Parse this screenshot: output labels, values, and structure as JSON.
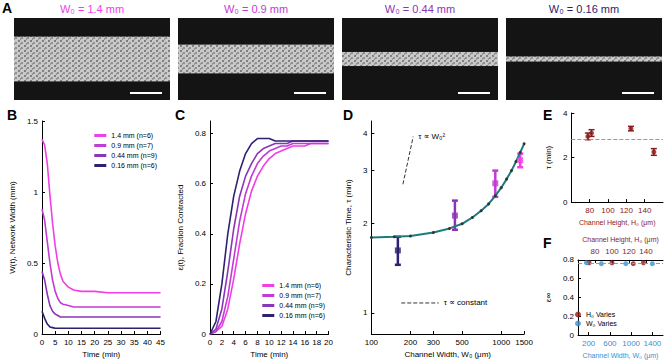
{
  "image_panel": {
    "title": "A",
    "items": [
      {
        "label": "W₀ = 1.4 mm",
        "color": "#f03ee8",
        "width": 1.4
      },
      {
        "label": "W₀ = 0.9 mm",
        "color": "#c23bd4",
        "width": 0.9
      },
      {
        "label": "W₀ = 0.44 mm",
        "color": "#8a35b8",
        "width": 0.44
      },
      {
        "label": "W₀ = 0.16 mm",
        "color": "#2c2270",
        "width": 0.16
      }
    ]
  },
  "chart_data": [
    {
      "type": "line",
      "title": "B",
      "xlabel": "Time (min)",
      "ylabel": "W(t), Network Width (mm)",
      "x": [
        0,
        1,
        2,
        3,
        4,
        5,
        6,
        7,
        8,
        10,
        12,
        15,
        20,
        25,
        30,
        35,
        40,
        45
      ],
      "xlim": [
        0,
        45
      ],
      "xticks": [
        0,
        5,
        10,
        15,
        20,
        25,
        30,
        35,
        40,
        45
      ],
      "ylim": [
        0,
        1.5
      ],
      "yticks": [
        0,
        0.5,
        1,
        1.5
      ],
      "legend": "upper right",
      "series": [
        {
          "name": "1.4 mm (n=6)",
          "color": "#f03ee8",
          "values": [
            1.37,
            1.33,
            1.2,
            0.98,
            0.78,
            0.62,
            0.5,
            0.42,
            0.37,
            0.33,
            0.31,
            0.3,
            0.3,
            0.29,
            0.29,
            0.29,
            0.29,
            0.29
          ]
        },
        {
          "name": "0.9 mm (n=7)",
          "color": "#c23bd4",
          "values": [
            0.88,
            0.8,
            0.65,
            0.5,
            0.38,
            0.3,
            0.25,
            0.22,
            0.21,
            0.2,
            0.19,
            0.19,
            0.19,
            0.19,
            0.19,
            0.19,
            0.19,
            0.19
          ]
        },
        {
          "name": "0.44 mm (n=9)",
          "color": "#8a35b8",
          "values": [
            0.44,
            0.38,
            0.28,
            0.2,
            0.16,
            0.14,
            0.13,
            0.12,
            0.12,
            0.12,
            0.12,
            0.12,
            0.12,
            0.12,
            0.12,
            0.12,
            0.12,
            0.12
          ]
        },
        {
          "name": "0.16 mm (n=6)",
          "color": "#2c2270",
          "values": [
            0.16,
            0.11,
            0.07,
            0.05,
            0.045,
            0.04,
            0.04,
            0.04,
            0.04,
            0.04,
            0.04,
            0.04,
            0.04,
            0.04,
            0.04,
            0.04,
            0.04,
            0.04
          ]
        }
      ]
    },
    {
      "type": "line",
      "title": "C",
      "xlabel": "Time (min)",
      "ylabel": "ε(t), Fraction Contracted",
      "x": [
        0,
        1,
        2,
        3,
        4,
        5,
        6,
        7,
        8,
        9,
        10,
        11,
        12,
        13,
        14,
        15,
        16,
        17,
        18,
        19,
        20
      ],
      "xlim": [
        0,
        20
      ],
      "xticks": [
        0,
        2,
        4,
        6,
        8,
        10,
        12,
        14,
        16,
        18,
        20
      ],
      "ylim": [
        0,
        0.85
      ],
      "yticks": [
        0,
        0.2,
        0.4,
        0.6,
        0.8
      ],
      "legend": "lower right",
      "series": [
        {
          "name": "1.4 mm (n=6)",
          "color": "#f03ee8",
          "values": [
            0,
            0.01,
            0.03,
            0.1,
            0.22,
            0.36,
            0.48,
            0.57,
            0.63,
            0.67,
            0.7,
            0.72,
            0.73,
            0.74,
            0.75,
            0.75,
            0.75,
            0.76,
            0.76,
            0.76,
            0.76
          ]
        },
        {
          "name": "0.9 mm (n=7)",
          "color": "#c23bd4",
          "values": [
            0,
            0.01,
            0.05,
            0.15,
            0.3,
            0.45,
            0.56,
            0.63,
            0.68,
            0.71,
            0.73,
            0.74,
            0.75,
            0.75,
            0.76,
            0.76,
            0.76,
            0.76,
            0.76,
            0.76,
            0.76
          ]
        },
        {
          "name": "0.44 mm (n=9)",
          "color": "#8a35b8",
          "values": [
            0,
            0.02,
            0.1,
            0.25,
            0.42,
            0.55,
            0.63,
            0.68,
            0.72,
            0.74,
            0.75,
            0.76,
            0.76,
            0.76,
            0.77,
            0.77,
            0.77,
            0.77,
            0.77,
            0.77,
            0.77
          ]
        },
        {
          "name": "0.16 mm (n=6)",
          "color": "#2c2270",
          "values": [
            0,
            0.05,
            0.2,
            0.4,
            0.55,
            0.65,
            0.72,
            0.76,
            0.78,
            0.78,
            0.78,
            0.77,
            0.77,
            0.77,
            0.77,
            0.77,
            0.77,
            0.77,
            0.77,
            0.77,
            0.77
          ]
        }
      ]
    },
    {
      "type": "scatter",
      "title": "D",
      "log": true,
      "xlabel": "Channel Width, W₀ (μm)",
      "ylabel": "Characteristic Time, τ (min)",
      "xlim": [
        100,
        1500
      ],
      "xticks": [
        100,
        200,
        300,
        500,
        1000,
        1500
      ],
      "ylim": [
        0.85,
        4.4
      ],
      "yticks": [
        1,
        2,
        3,
        4
      ],
      "series": [
        {
          "type": "scatter",
          "marker": "square",
          "x": [
            160,
            440,
            900,
            1400
          ],
          "values": [
            1.62,
            2.12,
            2.72,
            3.25
          ],
          "error_low": [
            1.45,
            1.9,
            2.45,
            3.08
          ],
          "error_high": [
            1.8,
            2.38,
            3.0,
            3.42
          ],
          "colors": [
            "#2c2270",
            "#8a35b8",
            "#c23bd4",
            "#f03ee8"
          ]
        },
        {
          "type": "line",
          "marker": "dot",
          "color": "#1f7a80",
          "x": [
            100,
            150,
            200,
            300,
            400,
            500,
            600,
            700,
            800,
            900,
            1000,
            1100,
            1200,
            1300,
            1400,
            1500
          ],
          "values": [
            1.79,
            1.8,
            1.81,
            1.86,
            1.92,
            1.99,
            2.09,
            2.2,
            2.32,
            2.47,
            2.63,
            2.81,
            3.0,
            3.22,
            3.45,
            3.69
          ]
        }
      ],
      "annotations": [
        {
          "text": "τ ∝ W₀²",
          "x": [
            175,
            210
          ],
          "values": [
            2.7,
            3.9
          ]
        },
        {
          "text": "τ ∝ constant",
          "x": [
            170,
            330
          ],
          "values": [
            1.08,
            1.08
          ]
        }
      ]
    },
    {
      "type": "scatter",
      "title": "E",
      "xlabel": "Channel Height, H₀ (μm)",
      "ylabel": "τ (min)",
      "x": [
        78,
        82,
        125,
        150
      ],
      "values": [
        2.95,
        3.1,
        3.3,
        2.25
      ],
      "error_low": [
        2.8,
        2.95,
        3.2,
        2.1
      ],
      "error_high": [
        3.1,
        3.25,
        3.4,
        2.4
      ],
      "color": "#8b1a1a",
      "marker": "circle",
      "reference_line": 2.8,
      "xlim": [
        60,
        160
      ],
      "xticks": [
        80,
        100,
        120,
        140
      ],
      "ylim": [
        0,
        4
      ],
      "yticks": [
        0,
        2,
        4
      ]
    },
    {
      "type": "scatter",
      "title": "F",
      "xlabel": "Channel Width, W₀ (μm)",
      "x2label": "Channel Height, H₀ (μm)",
      "ylabel": "ε∞",
      "xlim": [
        0,
        1600
      ],
      "xticks": [
        200,
        600,
        1000,
        1400
      ],
      "x2lim": [
        60,
        160
      ],
      "x2ticks": [
        80,
        100,
        120,
        140
      ],
      "ylim": [
        0,
        0.8
      ],
      "yticks": [
        0,
        0.2,
        0.4,
        0.6,
        0.8
      ],
      "reference_line": 0.76,
      "legend": "lower left",
      "series": [
        {
          "name": "H₀ Varies",
          "color": "#8b1a1a",
          "axis": "x2",
          "marker": "circle",
          "x": [
            73,
            100,
            125,
            137
          ],
          "values": [
            0.77,
            0.77,
            0.76,
            0.77
          ]
        },
        {
          "name": "W₀ Varies",
          "color": "#3a8fd0",
          "marker": "circle",
          "x": [
            160,
            440,
            900,
            1400
          ],
          "values": [
            0.77,
            0.76,
            0.76,
            0.76
          ]
        }
      ]
    }
  ]
}
